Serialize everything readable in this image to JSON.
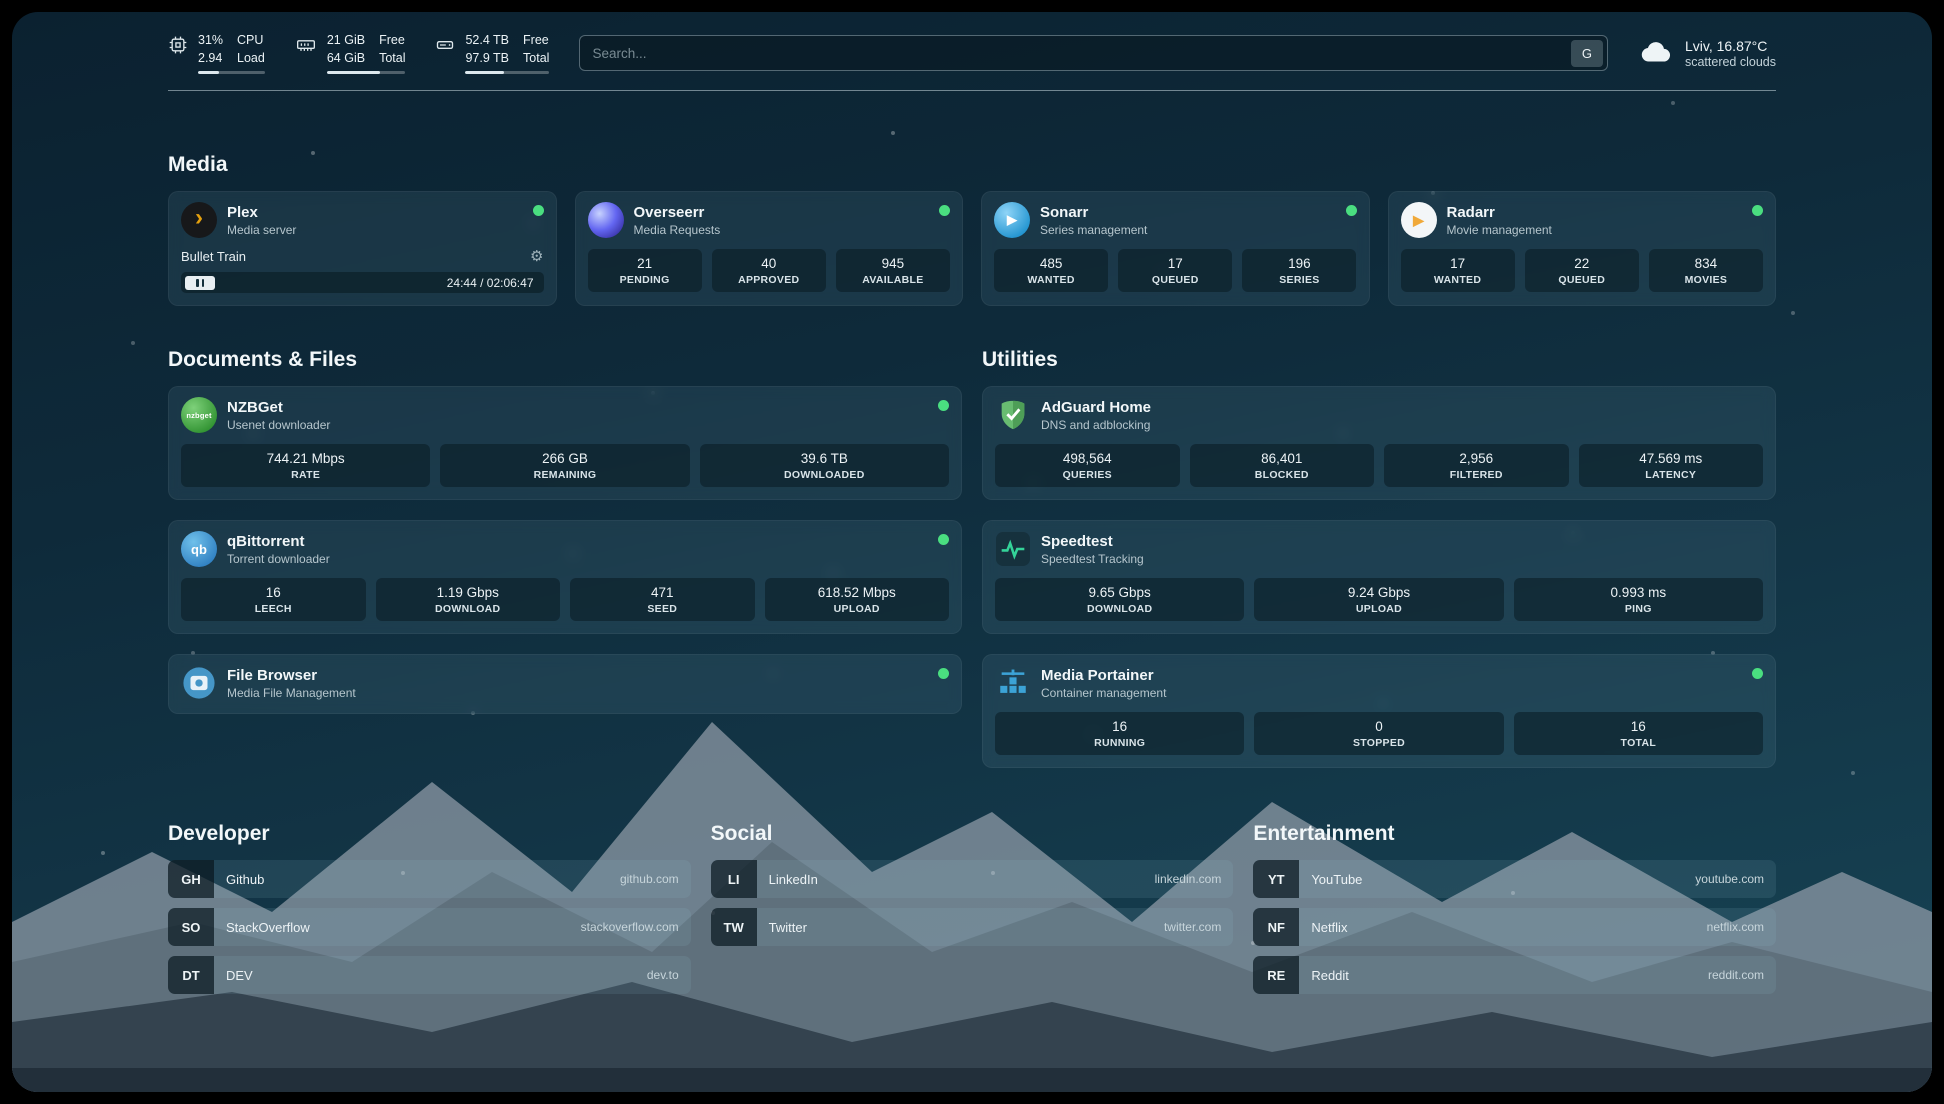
{
  "colors": {
    "status_online": "#4ade80",
    "background_top": "#0b2130",
    "background_bottom": "#174455",
    "brand_plex": "#e5a00d",
    "brand_sonarr": "#2596d1",
    "brand_radarr": "#f0a93a",
    "brand_nzbget": "#2f9130",
    "brand_qbittorrent": "#2f7fc1",
    "brand_overseerr": "#6366f1",
    "brand_adguard": "#68bc71",
    "brand_portainer": "#3ca3d6"
  },
  "icons": {
    "gear": "⚙"
  },
  "topbar": {
    "cpu": {
      "line1": "31%",
      "line2": "2.94",
      "label_line1": "CPU",
      "label_line2": "Load",
      "progress_percent": 31
    },
    "memory": {
      "line1": "21 GiB",
      "line2": "64 GiB",
      "label_line1": "Free",
      "label_line2": "Total",
      "progress_percent": 67
    },
    "disk": {
      "line1": "52.4 TB",
      "line2": "97.9 TB",
      "label_line1": "Free",
      "label_line2": "Total",
      "progress_percent": 46
    },
    "search": {
      "placeholder": "Search...",
      "provider_button": "G"
    },
    "weather": {
      "location": "Lviv, 16.87°C",
      "condition": "scattered clouds"
    }
  },
  "groups": {
    "media": {
      "title": "Media",
      "services": {
        "plex": {
          "name": "Plex",
          "description": "Media server",
          "status": "online",
          "icon_glyph": "›",
          "now_playing": {
            "title": "Bullet Train",
            "time_display": "24:44 / 02:06:47",
            "state": "paused"
          }
        },
        "overseerr": {
          "name": "Overseerr",
          "description": "Media Requests",
          "status": "online",
          "stats": [
            {
              "value": "21",
              "label": "PENDING"
            },
            {
              "value": "40",
              "label": "APPROVED"
            },
            {
              "value": "945",
              "label": "AVAILABLE"
            }
          ]
        },
        "sonarr": {
          "name": "Sonarr",
          "description": "Series management",
          "status": "online",
          "icon_glyph": "▶",
          "stats": [
            {
              "value": "485",
              "label": "WANTED"
            },
            {
              "value": "17",
              "label": "QUEUED"
            },
            {
              "value": "196",
              "label": "SERIES"
            }
          ]
        },
        "radarr": {
          "name": "Radarr",
          "description": "Movie management",
          "status": "online",
          "icon_glyph": "▶",
          "stats": [
            {
              "value": "17",
              "label": "WANTED"
            },
            {
              "value": "22",
              "label": "QUEUED"
            },
            {
              "value": "834",
              "label": "MOVIES"
            }
          ]
        }
      }
    },
    "documents": {
      "title": "Documents & Files",
      "services": {
        "nzbget": {
          "name": "NZBGet",
          "description": "Usenet downloader",
          "status": "online",
          "icon_glyph": "nzbget",
          "stats": [
            {
              "value": "744.21 Mbps",
              "label": "RATE"
            },
            {
              "value": "266 GB",
              "label": "REMAINING"
            },
            {
              "value": "39.6 TB",
              "label": "DOWNLOADED"
            }
          ]
        },
        "qbittorrent": {
          "name": "qBittorrent",
          "description": "Torrent downloader",
          "status": "online",
          "icon_glyph": "qb",
          "stats": [
            {
              "value": "16",
              "label": "LEECH"
            },
            {
              "value": "1.19 Gbps",
              "label": "DOWNLOAD"
            },
            {
              "value": "471",
              "label": "SEED"
            },
            {
              "value": "618.52 Mbps",
              "label": "UPLOAD"
            }
          ]
        },
        "filebrowser": {
          "name": "File Browser",
          "description": "Media File Management",
          "status": "online"
        }
      }
    },
    "utilities": {
      "title": "Utilities",
      "services": {
        "adguard": {
          "name": "AdGuard Home",
          "description": "DNS and adblocking",
          "stats": [
            {
              "value": "498,564",
              "label": "QUERIES"
            },
            {
              "value": "86,401",
              "label": "BLOCKED"
            },
            {
              "value": "2,956",
              "label": "FILTERED"
            },
            {
              "value": "47.569 ms",
              "label": "LATENCY"
            }
          ]
        },
        "speedtest": {
          "name": "Speedtest",
          "description": "Speedtest Tracking",
          "stats": [
            {
              "value": "9.65 Gbps",
              "label": "DOWNLOAD"
            },
            {
              "value": "9.24 Gbps",
              "label": "UPLOAD"
            },
            {
              "value": "0.993 ms",
              "label": "PING"
            }
          ]
        },
        "portainer": {
          "name": "Media Portainer",
          "description": "Container management",
          "status": "online",
          "stats": [
            {
              "value": "16",
              "label": "RUNNING"
            },
            {
              "value": "0",
              "label": "STOPPED"
            },
            {
              "value": "16",
              "label": "TOTAL"
            }
          ]
        }
      }
    }
  },
  "bookmarks": {
    "developer": {
      "title": "Developer",
      "items": [
        {
          "abbr": "GH",
          "name": "Github",
          "url": "github.com"
        },
        {
          "abbr": "SO",
          "name": "StackOverflow",
          "url": "stackoverflow.com"
        },
        {
          "abbr": "DT",
          "name": "DEV",
          "url": "dev.to"
        }
      ]
    },
    "social": {
      "title": "Social",
      "items": [
        {
          "abbr": "LI",
          "name": "LinkedIn",
          "url": "linkedin.com"
        },
        {
          "abbr": "TW",
          "name": "Twitter",
          "url": "twitter.com"
        }
      ]
    },
    "entertainment": {
      "title": "Entertainment",
      "items": [
        {
          "abbr": "YT",
          "name": "YouTube",
          "url": "youtube.com"
        },
        {
          "abbr": "NF",
          "name": "Netflix",
          "url": "netflix.com"
        },
        {
          "abbr": "RE",
          "name": "Reddit",
          "url": "reddit.com"
        }
      ]
    }
  }
}
